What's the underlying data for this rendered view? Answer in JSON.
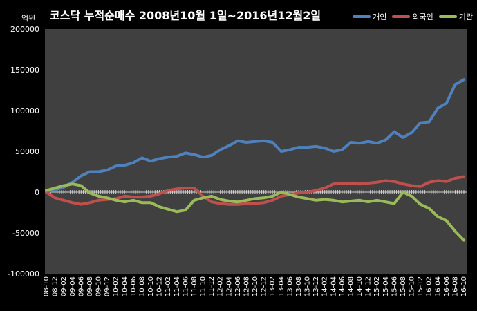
{
  "chart_data": {
    "type": "line",
    "title": "코스닥  누적순매수 2008년10월 1일~2016년12월2일",
    "ylabel": "억원",
    "xlabel": "",
    "ylim": [
      -100000,
      200000
    ],
    "yticks": [
      "200000",
      "150000",
      "100000",
      "50000",
      "0",
      "-50000",
      "-100000"
    ],
    "yticks_values": [
      200000,
      150000,
      100000,
      50000,
      0,
      -50000,
      -100000
    ],
    "categories": [
      "08-10",
      "08-12",
      "09-02",
      "09-04",
      "09-06",
      "09-08",
      "09-10",
      "09-12",
      "10-02",
      "10-04",
      "10-06",
      "10-08",
      "10-10",
      "10-12",
      "11-02",
      "11-04",
      "11-06",
      "11-08",
      "11-10",
      "11-12",
      "12-02",
      "12-04",
      "12-06",
      "12-08",
      "12-10",
      "12-12",
      "13-02",
      "13-04",
      "13-06",
      "13-08",
      "13-10",
      "13-12",
      "14-02",
      "14-04",
      "14-06",
      "14-08",
      "14-10",
      "14-12",
      "15-02",
      "15-04",
      "15-06",
      "15-08",
      "15-10",
      "15-12",
      "16-02",
      "16-04",
      "16-06",
      "16-08",
      "16-10"
    ],
    "grid": false,
    "legend_position": "top-right",
    "series": [
      {
        "name": "개인",
        "color": "#4F81BD",
        "values": [
          0,
          3000,
          6000,
          12000,
          20000,
          25000,
          25000,
          27000,
          32000,
          33000,
          36000,
          42000,
          38000,
          41000,
          43000,
          44000,
          48000,
          46000,
          43000,
          45000,
          52000,
          57000,
          63000,
          61000,
          62000,
          63000,
          61000,
          50000,
          52000,
          55000,
          55000,
          56000,
          54000,
          50000,
          52000,
          61000,
          60000,
          62000,
          60000,
          64000,
          74000,
          67000,
          73000,
          85000,
          86000,
          103000,
          109000,
          132000,
          138000
        ]
      },
      {
        "name": "외국인",
        "color": "#C0504D",
        "values": [
          0,
          -7000,
          -10000,
          -13000,
          -15000,
          -13000,
          -10000,
          -9000,
          -8000,
          -5000,
          -6000,
          -6000,
          -5000,
          -2000,
          2000,
          4000,
          5000,
          5000,
          -5000,
          -12000,
          -14000,
          -15000,
          -15000,
          -14000,
          -14000,
          -13000,
          -10000,
          -5000,
          -3000,
          -1000,
          0,
          2000,
          5000,
          10000,
          11000,
          11000,
          10000,
          11000,
          12000,
          14000,
          13000,
          10000,
          8000,
          7000,
          12000,
          14000,
          13000,
          17000,
          19000
        ]
      },
      {
        "name": "기관",
        "color": "#9BBB59",
        "values": [
          2000,
          5000,
          8000,
          10000,
          8000,
          -1000,
          -5000,
          -7000,
          -10000,
          -12000,
          -10000,
          -13000,
          -13000,
          -18000,
          -21000,
          -24000,
          -22000,
          -10000,
          -7000,
          -5000,
          -9000,
          -11000,
          -12000,
          -10000,
          -8000,
          -7000,
          -5000,
          0,
          -3000,
          -6000,
          -8000,
          -10000,
          -9000,
          -10000,
          -12000,
          -11000,
          -10000,
          -12000,
          -10000,
          -12000,
          -14000,
          0,
          -5000,
          -15000,
          -20000,
          -30000,
          -35000,
          -48000,
          -59000
        ]
      }
    ]
  }
}
